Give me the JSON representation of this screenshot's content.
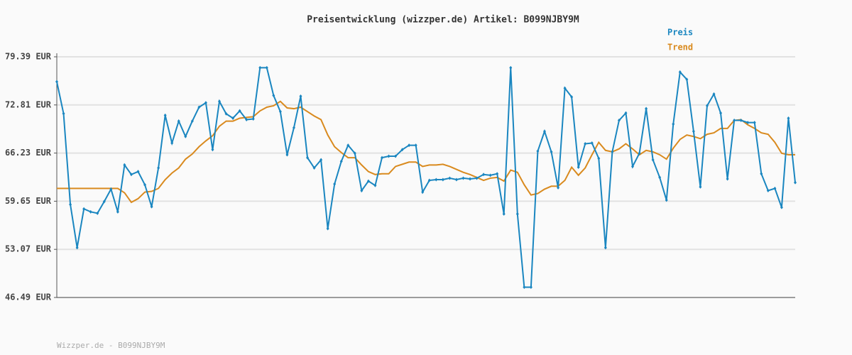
{
  "chart_data": {
    "type": "line",
    "title": "Preisentwicklung (wizzper.de) Artikel: B099NJBY9M",
    "footer": "Wizzper.de - B099NJBY9M",
    "ylim": [
      46.49,
      79.39
    ],
    "yticks": [
      {
        "value": 46.49,
        "label": "46.49 EUR"
      },
      {
        "value": 53.07,
        "label": "53.07 EUR"
      },
      {
        "value": 59.65,
        "label": "59.65 EUR"
      },
      {
        "value": 66.23,
        "label": "66.23 EUR"
      },
      {
        "value": 72.81,
        "label": "72.81 EUR"
      },
      {
        "value": 79.39,
        "label": "79.39 EUR"
      }
    ],
    "grid": true,
    "legend": "top-right",
    "series": [
      {
        "name": "Preis",
        "color": "#1a86c0",
        "markers": true,
        "values": [
          75.99,
          71.63,
          59.2,
          53.3,
          58.6,
          58.2,
          58.0,
          59.6,
          61.3,
          58.2,
          64.6,
          63.3,
          63.7,
          61.9,
          58.9,
          64.2,
          71.4,
          67.6,
          70.6,
          68.5,
          70.6,
          72.5,
          73.1,
          66.7,
          73.3,
          71.6,
          71.0,
          72.0,
          70.8,
          70.9,
          77.9,
          77.9,
          74.1,
          71.9,
          66.0,
          69.7,
          74.0,
          65.6,
          64.2,
          65.3,
          55.9,
          62.0,
          65.1,
          67.3,
          66.2,
          61.1,
          62.4,
          61.8,
          65.6,
          65.8,
          65.8,
          66.7,
          67.3,
          67.3,
          60.9,
          62.5,
          62.6,
          62.6,
          62.8,
          62.6,
          62.8,
          62.7,
          62.8,
          63.3,
          63.2,
          63.4,
          57.9,
          77.9,
          57.9,
          47.9,
          47.9,
          66.5,
          69.2,
          66.4,
          61.5,
          75.1,
          73.9,
          64.3,
          67.5,
          67.6,
          65.5,
          53.3,
          66.4,
          70.7,
          71.7,
          64.4,
          66.2,
          72.3,
          65.3,
          62.9,
          59.8,
          70.2,
          77.3,
          76.3,
          69.2,
          61.6,
          72.7,
          74.3,
          71.7,
          62.7,
          70.7,
          70.7,
          70.4,
          70.4,
          63.4,
          61.1,
          61.4,
          58.8,
          71.0,
          62.2
        ]
      },
      {
        "name": "Trend",
        "color": "#d98a1e",
        "markers": false,
        "values": [
          61.4,
          61.4,
          61.4,
          61.4,
          61.4,
          61.4,
          61.4,
          61.4,
          61.4,
          61.4,
          60.8,
          59.5,
          60.0,
          60.9,
          61.0,
          61.4,
          62.6,
          63.5,
          64.2,
          65.4,
          66.1,
          67.1,
          67.9,
          68.6,
          69.9,
          70.6,
          70.6,
          71.0,
          71.1,
          71.2,
          72.0,
          72.5,
          72.7,
          73.3,
          72.4,
          72.3,
          72.5,
          71.9,
          71.3,
          70.8,
          68.7,
          67.1,
          66.3,
          65.6,
          65.6,
          64.6,
          63.7,
          63.3,
          63.4,
          63.4,
          64.4,
          64.7,
          65.0,
          65.0,
          64.4,
          64.6,
          64.6,
          64.7,
          64.4,
          64.0,
          63.6,
          63.3,
          62.9,
          62.5,
          62.8,
          62.9,
          62.4,
          63.9,
          63.6,
          61.9,
          60.5,
          60.7,
          61.3,
          61.7,
          61.7,
          62.5,
          64.3,
          63.2,
          64.2,
          66.0,
          67.7,
          66.6,
          66.4,
          66.8,
          67.5,
          66.8,
          66.0,
          66.6,
          66.4,
          66.0,
          65.4,
          66.9,
          68.1,
          68.7,
          68.5,
          68.2,
          68.8,
          69.0,
          69.6,
          69.6,
          70.7,
          70.8,
          70.1,
          69.6,
          69.0,
          68.8,
          67.7,
          66.2,
          66.0,
          66.0
        ]
      }
    ]
  }
}
